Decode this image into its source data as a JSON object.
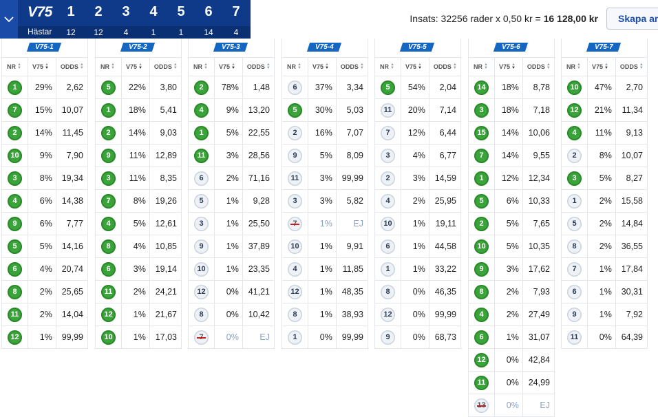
{
  "header": {
    "logo": "V75",
    "horses_label": "Hästar",
    "legs": [
      {
        "num": "1",
        "horses": "12"
      },
      {
        "num": "2",
        "horses": "12"
      },
      {
        "num": "3",
        "horses": "4"
      },
      {
        "num": "4",
        "horses": "1"
      },
      {
        "num": "5",
        "horses": "1"
      },
      {
        "num": "6",
        "horses": "14"
      },
      {
        "num": "7",
        "horses": "4"
      }
    ],
    "insats_prefix": "Insats: 32256 rader x 0,50 kr = ",
    "insats_total": "16 128,00 kr",
    "create_button": "Skapa an"
  },
  "column_headers": {
    "nr": "NR",
    "v75": "V75",
    "odds": "ODDS"
  },
  "legs": [
    {
      "badge": "V75-1",
      "rows": [
        {
          "nr": "1",
          "pct": "29%",
          "odds": "2,62",
          "state": "selected"
        },
        {
          "nr": "7",
          "pct": "15%",
          "odds": "10,07",
          "state": "selected"
        },
        {
          "nr": "2",
          "pct": "14%",
          "odds": "11,45",
          "state": "selected"
        },
        {
          "nr": "10",
          "pct": "9%",
          "odds": "7,90",
          "state": "selected"
        },
        {
          "nr": "3",
          "pct": "8%",
          "odds": "19,34",
          "state": "selected"
        },
        {
          "nr": "4",
          "pct": "6%",
          "odds": "14,38",
          "state": "selected"
        },
        {
          "nr": "9",
          "pct": "6%",
          "odds": "7,77",
          "state": "selected"
        },
        {
          "nr": "5",
          "pct": "5%",
          "odds": "14,16",
          "state": "selected"
        },
        {
          "nr": "6",
          "pct": "4%",
          "odds": "20,74",
          "state": "selected"
        },
        {
          "nr": "8",
          "pct": "2%",
          "odds": "25,65",
          "state": "selected"
        },
        {
          "nr": "11",
          "pct": "2%",
          "odds": "14,04",
          "state": "selected"
        },
        {
          "nr": "12",
          "pct": "1%",
          "odds": "99,99",
          "state": "selected"
        }
      ]
    },
    {
      "badge": "V75-2",
      "rows": [
        {
          "nr": "5",
          "pct": "22%",
          "odds": "3,80",
          "state": "selected"
        },
        {
          "nr": "1",
          "pct": "18%",
          "odds": "5,41",
          "state": "selected"
        },
        {
          "nr": "2",
          "pct": "14%",
          "odds": "9,03",
          "state": "selected"
        },
        {
          "nr": "9",
          "pct": "11%",
          "odds": "12,89",
          "state": "selected"
        },
        {
          "nr": "3",
          "pct": "11%",
          "odds": "8,35",
          "state": "selected"
        },
        {
          "nr": "7",
          "pct": "8%",
          "odds": "19,26",
          "state": "selected"
        },
        {
          "nr": "4",
          "pct": "5%",
          "odds": "12,61",
          "state": "selected"
        },
        {
          "nr": "8",
          "pct": "4%",
          "odds": "10,85",
          "state": "selected"
        },
        {
          "nr": "6",
          "pct": "3%",
          "odds": "19,14",
          "state": "selected"
        },
        {
          "nr": "11",
          "pct": "2%",
          "odds": "24,21",
          "state": "selected"
        },
        {
          "nr": "12",
          "pct": "1%",
          "odds": "21,67",
          "state": "selected"
        },
        {
          "nr": "10",
          "pct": "1%",
          "odds": "17,03",
          "state": "selected"
        }
      ]
    },
    {
      "badge": "V75-3",
      "rows": [
        {
          "nr": "2",
          "pct": "78%",
          "odds": "1,48",
          "state": "selected"
        },
        {
          "nr": "4",
          "pct": "9%",
          "odds": "13,20",
          "state": "selected"
        },
        {
          "nr": "1",
          "pct": "5%",
          "odds": "22,55",
          "state": "selected"
        },
        {
          "nr": "11",
          "pct": "3%",
          "odds": "28,56",
          "state": "selected"
        },
        {
          "nr": "6",
          "pct": "2%",
          "odds": "71,16",
          "state": "normal"
        },
        {
          "nr": "5",
          "pct": "1%",
          "odds": "9,28",
          "state": "normal"
        },
        {
          "nr": "3",
          "pct": "1%",
          "odds": "25,50",
          "state": "normal"
        },
        {
          "nr": "9",
          "pct": "1%",
          "odds": "37,89",
          "state": "normal"
        },
        {
          "nr": "10",
          "pct": "1%",
          "odds": "23,35",
          "state": "normal"
        },
        {
          "nr": "12",
          "pct": "0%",
          "odds": "41,21",
          "state": "normal"
        },
        {
          "nr": "8",
          "pct": "0%",
          "odds": "10,42",
          "state": "normal"
        },
        {
          "nr": "7",
          "pct": "0%",
          "odds": "EJ",
          "state": "scratched"
        }
      ]
    },
    {
      "badge": "V75-4",
      "rows": [
        {
          "nr": "6",
          "pct": "37%",
          "odds": "3,34",
          "state": "normal"
        },
        {
          "nr": "5",
          "pct": "30%",
          "odds": "5,03",
          "state": "selected"
        },
        {
          "nr": "2",
          "pct": "16%",
          "odds": "7,07",
          "state": "normal"
        },
        {
          "nr": "9",
          "pct": "5%",
          "odds": "8,09",
          "state": "normal"
        },
        {
          "nr": "11",
          "pct": "3%",
          "odds": "99,99",
          "state": "normal"
        },
        {
          "nr": "3",
          "pct": "3%",
          "odds": "5,82",
          "state": "normal"
        },
        {
          "nr": "7",
          "pct": "1%",
          "odds": "EJ",
          "state": "scratched"
        },
        {
          "nr": "10",
          "pct": "1%",
          "odds": "9,91",
          "state": "normal"
        },
        {
          "nr": "4",
          "pct": "1%",
          "odds": "11,85",
          "state": "normal"
        },
        {
          "nr": "12",
          "pct": "1%",
          "odds": "48,35",
          "state": "normal"
        },
        {
          "nr": "8",
          "pct": "1%",
          "odds": "38,93",
          "state": "normal"
        },
        {
          "nr": "1",
          "pct": "0%",
          "odds": "99,99",
          "state": "normal"
        }
      ]
    },
    {
      "badge": "V75-5",
      "rows": [
        {
          "nr": "5",
          "pct": "54%",
          "odds": "2,04",
          "state": "selected"
        },
        {
          "nr": "11",
          "pct": "20%",
          "odds": "7,14",
          "state": "normal"
        },
        {
          "nr": "7",
          "pct": "12%",
          "odds": "6,44",
          "state": "normal"
        },
        {
          "nr": "3",
          "pct": "4%",
          "odds": "6,77",
          "state": "normal"
        },
        {
          "nr": "2",
          "pct": "3%",
          "odds": "14,59",
          "state": "normal"
        },
        {
          "nr": "4",
          "pct": "2%",
          "odds": "25,95",
          "state": "normal"
        },
        {
          "nr": "10",
          "pct": "1%",
          "odds": "19,11",
          "state": "normal"
        },
        {
          "nr": "6",
          "pct": "1%",
          "odds": "44,58",
          "state": "normal"
        },
        {
          "nr": "1",
          "pct": "1%",
          "odds": "33,22",
          "state": "normal"
        },
        {
          "nr": "8",
          "pct": "0%",
          "odds": "46,35",
          "state": "normal"
        },
        {
          "nr": "12",
          "pct": "0%",
          "odds": "99,99",
          "state": "normal"
        },
        {
          "nr": "9",
          "pct": "0%",
          "odds": "68,73",
          "state": "normal"
        }
      ]
    },
    {
      "badge": "V75-6",
      "rows": [
        {
          "nr": "14",
          "pct": "18%",
          "odds": "8,78",
          "state": "selected"
        },
        {
          "nr": "3",
          "pct": "18%",
          "odds": "7,18",
          "state": "selected"
        },
        {
          "nr": "15",
          "pct": "14%",
          "odds": "10,06",
          "state": "selected"
        },
        {
          "nr": "7",
          "pct": "14%",
          "odds": "9,55",
          "state": "selected"
        },
        {
          "nr": "1",
          "pct": "12%",
          "odds": "12,34",
          "state": "selected"
        },
        {
          "nr": "5",
          "pct": "6%",
          "odds": "10,33",
          "state": "selected"
        },
        {
          "nr": "2",
          "pct": "5%",
          "odds": "7,65",
          "state": "selected"
        },
        {
          "nr": "10",
          "pct": "5%",
          "odds": "10,35",
          "state": "selected"
        },
        {
          "nr": "9",
          "pct": "3%",
          "odds": "17,62",
          "state": "selected"
        },
        {
          "nr": "8",
          "pct": "2%",
          "odds": "7,93",
          "state": "selected"
        },
        {
          "nr": "4",
          "pct": "2%",
          "odds": "27,49",
          "state": "selected"
        },
        {
          "nr": "6",
          "pct": "1%",
          "odds": "31,07",
          "state": "selected"
        },
        {
          "nr": "12",
          "pct": "0%",
          "odds": "42,84",
          "state": "selected"
        },
        {
          "nr": "11",
          "pct": "0%",
          "odds": "24,99",
          "state": "selected"
        },
        {
          "nr": "13",
          "pct": "0%",
          "odds": "EJ",
          "state": "scratched"
        }
      ]
    },
    {
      "badge": "V75-7",
      "rows": [
        {
          "nr": "10",
          "pct": "47%",
          "odds": "2,70",
          "state": "selected"
        },
        {
          "nr": "12",
          "pct": "21%",
          "odds": "11,34",
          "state": "selected"
        },
        {
          "nr": "4",
          "pct": "11%",
          "odds": "9,13",
          "state": "selected"
        },
        {
          "nr": "2",
          "pct": "8%",
          "odds": "10,07",
          "state": "normal"
        },
        {
          "nr": "3",
          "pct": "5%",
          "odds": "8,27",
          "state": "selected"
        },
        {
          "nr": "1",
          "pct": "2%",
          "odds": "15,58",
          "state": "normal"
        },
        {
          "nr": "5",
          "pct": "2%",
          "odds": "14,84",
          "state": "normal"
        },
        {
          "nr": "8",
          "pct": "2%",
          "odds": "36,55",
          "state": "normal"
        },
        {
          "nr": "7",
          "pct": "1%",
          "odds": "17,84",
          "state": "normal"
        },
        {
          "nr": "6",
          "pct": "1%",
          "odds": "30,31",
          "state": "normal"
        },
        {
          "nr": "9",
          "pct": "1%",
          "odds": "7,92",
          "state": "normal"
        },
        {
          "nr": "11",
          "pct": "0%",
          "odds": "64,39",
          "state": "normal"
        }
      ]
    }
  ]
}
